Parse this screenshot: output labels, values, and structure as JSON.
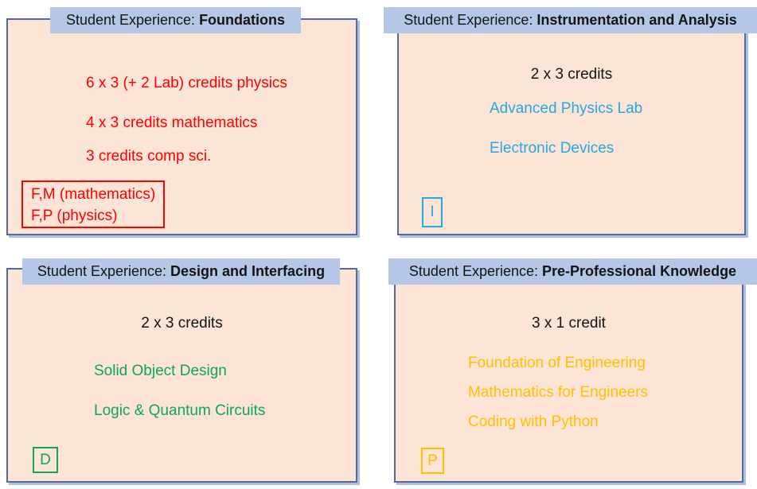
{
  "title_prefix": "Student Experience: ",
  "colors": {
    "header_bg": "#B4C7E7",
    "panel_bg": "#FCE4D6",
    "panel_border": "#54699F",
    "panel_shadow": "#AFBEDF",
    "ink": "#141414",
    "red": "#FF0000",
    "cyan": "#25A9E0",
    "green": "#0FA654",
    "gold": "#FFC000"
  },
  "panels": {
    "foundations": {
      "title": "Foundations",
      "lines": [
        "6 x 3 (+ 2 Lab) credits physics",
        "4 x 3 credits mathematics",
        "3 credits comp sci."
      ],
      "note_lines": [
        "F,M (mathematics)",
        "F,P (physics)"
      ]
    },
    "instrumentation": {
      "title": "Instrumentation and Analysis",
      "credits": "2 x 3 credits",
      "courses": [
        "Advanced Physics Lab",
        "Electronic Devices"
      ],
      "badge": "I"
    },
    "design": {
      "title": "Design and Interfacing",
      "credits": "2 x 3 credits",
      "courses": [
        "Solid Object Design",
        "Logic & Quantum Circuits"
      ],
      "badge": "D"
    },
    "preprofessional": {
      "title": "Pre-Professional Knowledge",
      "credits": "3 x 1 credit",
      "courses": [
        "Foundation of Engineering",
        "Mathematics for Engineers",
        "Coding with Python"
      ],
      "badge": "P"
    }
  }
}
